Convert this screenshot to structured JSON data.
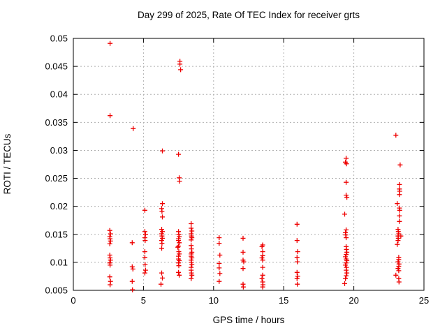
{
  "window": {
    "title": "Day 299 of 2025, Rate Of TEC Index for receiver grts"
  },
  "colors": {
    "background": "#ffffff",
    "marker": "#ee0000",
    "grid": "#b0b0b0",
    "axis": "#000000"
  },
  "chart_data": {
    "type": "scatter",
    "title": "Day 299 of 2025, Rate Of TEC Index for receiver grts",
    "xlabel": "GPS time / hours",
    "ylabel": "ROTI / TECUs",
    "xlim": [
      0,
      25
    ],
    "ylim": [
      0.005,
      0.05
    ],
    "xticks": [
      0,
      5,
      10,
      15,
      20,
      25
    ],
    "xtick_labels": [
      "0",
      "5",
      "10",
      "15",
      "20",
      "25"
    ],
    "yticks": [
      0.005,
      0.01,
      0.015,
      0.02,
      0.025,
      0.03,
      0.035,
      0.04,
      0.045,
      0.05
    ],
    "ytick_labels": [
      "0.005",
      "0.01",
      "0.015",
      "0.02",
      "0.025",
      "0.03",
      "0.035",
      "0.04",
      "0.045",
      "0.05"
    ],
    "grid": true,
    "legend": false,
    "marker": {
      "shape": "plus",
      "size": 7
    },
    "series": [
      {
        "name": "ROTI",
        "points": [
          [
            2.62,
            0.0491
          ],
          [
            2.62,
            0.0362
          ],
          [
            2.6,
            0.0157
          ],
          [
            2.65,
            0.0151
          ],
          [
            2.6,
            0.0146
          ],
          [
            2.62,
            0.0142
          ],
          [
            2.65,
            0.0138
          ],
          [
            2.6,
            0.0133
          ],
          [
            2.6,
            0.0113
          ],
          [
            2.62,
            0.0108
          ],
          [
            2.65,
            0.0104
          ],
          [
            2.6,
            0.0099
          ],
          [
            2.62,
            0.0095
          ],
          [
            2.6,
            0.0074
          ],
          [
            2.65,
            0.0066
          ],
          [
            2.62,
            0.006
          ],
          [
            4.27,
            0.0339
          ],
          [
            4.2,
            0.0135
          ],
          [
            4.2,
            0.0092
          ],
          [
            4.25,
            0.0088
          ],
          [
            4.2,
            0.0066
          ],
          [
            4.22,
            0.0051
          ],
          [
            5.1,
            0.0193
          ],
          [
            5.1,
            0.0155
          ],
          [
            5.15,
            0.015
          ],
          [
            5.1,
            0.0144
          ],
          [
            5.12,
            0.0139
          ],
          [
            5.1,
            0.0119
          ],
          [
            5.1,
            0.0109
          ],
          [
            5.12,
            0.0096
          ],
          [
            5.15,
            0.0086
          ],
          [
            5.1,
            0.0081
          ],
          [
            6.35,
            0.0299
          ],
          [
            6.35,
            0.0205
          ],
          [
            6.3,
            0.0196
          ],
          [
            6.32,
            0.0191
          ],
          [
            6.35,
            0.0181
          ],
          [
            6.3,
            0.0159
          ],
          [
            6.35,
            0.0155
          ],
          [
            6.3,
            0.0151
          ],
          [
            6.32,
            0.0147
          ],
          [
            6.35,
            0.0143
          ],
          [
            6.3,
            0.0139
          ],
          [
            6.32,
            0.0134
          ],
          [
            6.3,
            0.0125
          ],
          [
            6.3,
            0.0081
          ],
          [
            6.35,
            0.0072
          ],
          [
            6.25,
            0.0061
          ],
          [
            7.6,
            0.0459
          ],
          [
            7.6,
            0.0454
          ],
          [
            7.65,
            0.0444
          ],
          [
            7.5,
            0.0293
          ],
          [
            7.55,
            0.0251
          ],
          [
            7.57,
            0.0245
          ],
          [
            7.5,
            0.0155
          ],
          [
            7.52,
            0.015
          ],
          [
            7.55,
            0.0146
          ],
          [
            7.5,
            0.0142
          ],
          [
            7.5,
            0.0139
          ],
          [
            7.55,
            0.0135
          ],
          [
            7.5,
            0.0129
          ],
          [
            7.45,
            0.0127
          ],
          [
            7.52,
            0.0119
          ],
          [
            7.55,
            0.0115
          ],
          [
            7.5,
            0.0111
          ],
          [
            7.5,
            0.0106
          ],
          [
            7.55,
            0.0103
          ],
          [
            7.5,
            0.0099
          ],
          [
            7.52,
            0.0094
          ],
          [
            7.5,
            0.0082
          ],
          [
            7.55,
            0.0077
          ],
          [
            8.4,
            0.0169
          ],
          [
            8.4,
            0.0161
          ],
          [
            8.45,
            0.0156
          ],
          [
            8.4,
            0.0151
          ],
          [
            8.42,
            0.0147
          ],
          [
            8.45,
            0.0144
          ],
          [
            8.4,
            0.014
          ],
          [
            8.4,
            0.013
          ],
          [
            8.42,
            0.0124
          ],
          [
            8.45,
            0.0118
          ],
          [
            8.4,
            0.0115
          ],
          [
            8.4,
            0.0111
          ],
          [
            8.45,
            0.0108
          ],
          [
            8.4,
            0.0104
          ],
          [
            8.42,
            0.01
          ],
          [
            8.45,
            0.0096
          ],
          [
            8.4,
            0.0091
          ],
          [
            8.4,
            0.0086
          ],
          [
            8.42,
            0.0081
          ],
          [
            8.45,
            0.0077
          ],
          [
            8.4,
            0.0071
          ],
          [
            10.4,
            0.0144
          ],
          [
            10.4,
            0.0134
          ],
          [
            10.45,
            0.0113
          ],
          [
            10.4,
            0.0098
          ],
          [
            10.4,
            0.009
          ],
          [
            10.45,
            0.008
          ],
          [
            10.4,
            0.0066
          ],
          [
            12.1,
            0.0143
          ],
          [
            12.1,
            0.0118
          ],
          [
            12.1,
            0.0104
          ],
          [
            12.15,
            0.0101
          ],
          [
            12.1,
            0.0089
          ],
          [
            12.1,
            0.0061
          ],
          [
            12.12,
            0.0056
          ],
          [
            13.5,
            0.0131
          ],
          [
            13.45,
            0.0128
          ],
          [
            13.5,
            0.0119
          ],
          [
            13.5,
            0.0112
          ],
          [
            13.45,
            0.0108
          ],
          [
            13.5,
            0.0104
          ],
          [
            13.5,
            0.0091
          ],
          [
            13.5,
            0.0077
          ],
          [
            13.45,
            0.0071
          ],
          [
            13.5,
            0.0065
          ],
          [
            13.52,
            0.006
          ],
          [
            13.5,
            0.0056
          ],
          [
            15.95,
            0.0168
          ],
          [
            15.95,
            0.0139
          ],
          [
            16,
            0.0119
          ],
          [
            15.95,
            0.0109
          ],
          [
            15.97,
            0.0101
          ],
          [
            15.95,
            0.0082
          ],
          [
            16,
            0.0075
          ],
          [
            15.95,
            0.0071
          ],
          [
            15.97,
            0.0061
          ],
          [
            19.45,
            0.0286
          ],
          [
            19.4,
            0.0279
          ],
          [
            19.47,
            0.0276
          ],
          [
            19.45,
            0.0243
          ],
          [
            19.45,
            0.022
          ],
          [
            19.5,
            0.0216
          ],
          [
            19.35,
            0.0186
          ],
          [
            19.45,
            0.0158
          ],
          [
            19.4,
            0.0153
          ],
          [
            19.42,
            0.0149
          ],
          [
            19.45,
            0.0144
          ],
          [
            19.45,
            0.0128
          ],
          [
            19.47,
            0.0123
          ],
          [
            19.5,
            0.0118
          ],
          [
            19.45,
            0.0114
          ],
          [
            19.4,
            0.011
          ],
          [
            19.45,
            0.0106
          ],
          [
            19.5,
            0.0103
          ],
          [
            19.45,
            0.0099
          ],
          [
            19.4,
            0.0095
          ],
          [
            19.47,
            0.0091
          ],
          [
            19.45,
            0.0086
          ],
          [
            19.5,
            0.0081
          ],
          [
            19.45,
            0.0076
          ],
          [
            19.4,
            0.0071
          ],
          [
            19.35,
            0.0062
          ],
          [
            23.0,
            0.0327
          ],
          [
            23.3,
            0.0274
          ],
          [
            23.25,
            0.0239
          ],
          [
            23.25,
            0.0231
          ],
          [
            23.27,
            0.0227
          ],
          [
            23.25,
            0.0221
          ],
          [
            23.1,
            0.0205
          ],
          [
            23.25,
            0.0197
          ],
          [
            23.27,
            0.0193
          ],
          [
            23.25,
            0.0183
          ],
          [
            23.25,
            0.0173
          ],
          [
            23.15,
            0.0159
          ],
          [
            23.17,
            0.0155
          ],
          [
            23.2,
            0.0151
          ],
          [
            23.15,
            0.0147
          ],
          [
            23.35,
            0.0147
          ],
          [
            23.17,
            0.0143
          ],
          [
            23.15,
            0.0139
          ],
          [
            23.1,
            0.0132
          ],
          [
            23.2,
            0.0109
          ],
          [
            23.2,
            0.0105
          ],
          [
            23.15,
            0.0101
          ],
          [
            23.22,
            0.0097
          ],
          [
            23.2,
            0.0093
          ],
          [
            23.15,
            0.0089
          ],
          [
            23.2,
            0.0085
          ],
          [
            23.0,
            0.0077
          ],
          [
            23.2,
            0.0071
          ],
          [
            23.22,
            0.0065
          ]
        ]
      }
    ]
  }
}
